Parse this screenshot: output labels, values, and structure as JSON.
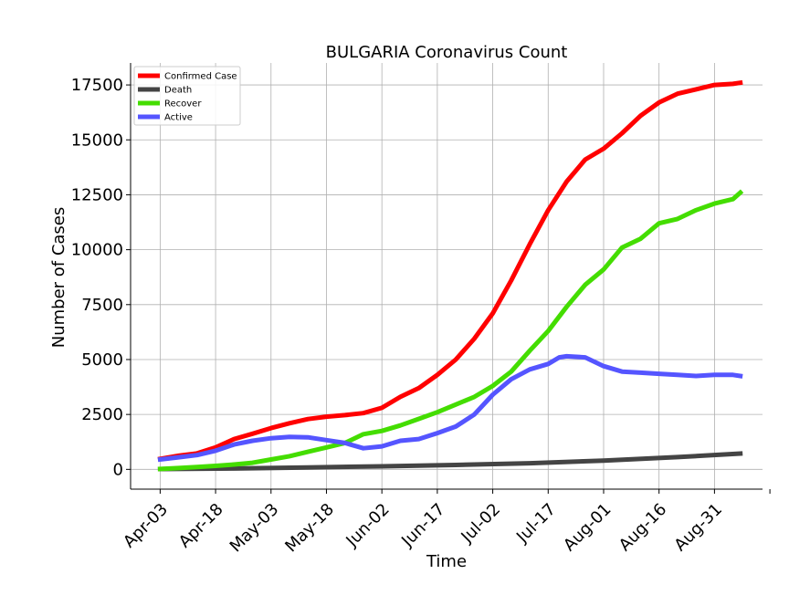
{
  "chart_data": {
    "type": "line",
    "title": "BULGARIA Coronavirus Count",
    "xlabel": "Time",
    "ylabel": "Number of Cases",
    "x_tick_labels": [
      "Apr-03",
      "Apr-18",
      "May-03",
      "May-18",
      "Jun-02",
      "Jun-17",
      "Jul-02",
      "Jul-17",
      "Aug-01",
      "Aug-16",
      "Aug-31"
    ],
    "x_range_days": [
      -8,
      163
    ],
    "ylim": [
      -900,
      18500
    ],
    "y_ticks": [
      0,
      2500,
      5000,
      7500,
      10000,
      12500,
      15000,
      17500
    ],
    "y_tick_labels": [
      "0",
      "2500",
      "5000",
      "7500",
      "10000",
      "12500",
      "15000",
      "17500"
    ],
    "grid": true,
    "legend_position": "top-left",
    "series": [
      {
        "name": "Confirmed Case",
        "color": "#ff0000",
        "x": [
          0,
          5,
          10,
          15,
          20,
          25,
          30,
          35,
          40,
          45,
          50,
          55,
          60,
          65,
          70,
          75,
          80,
          85,
          90,
          95,
          100,
          105,
          110,
          115,
          120,
          125,
          130,
          135,
          140,
          145,
          150,
          155,
          157
        ],
        "values": [
          480,
          620,
          730,
          1000,
          1380,
          1620,
          1880,
          2100,
          2290,
          2400,
          2470,
          2560,
          2800,
          3300,
          3700,
          4300,
          5000,
          5950,
          7100,
          8600,
          10250,
          11800,
          13100,
          14100,
          14600,
          15300,
          16100,
          16700,
          17100,
          17300,
          17500,
          17550,
          17600
        ]
      },
      {
        "name": "Death",
        "color": "#444444",
        "x": [
          0,
          20,
          40,
          60,
          80,
          100,
          120,
          140,
          157
        ],
        "values": [
          15,
          40,
          90,
          140,
          200,
          280,
          400,
          560,
          720
        ]
      },
      {
        "name": "Recover",
        "color": "#44dd00",
        "x": [
          0,
          5,
          10,
          15,
          20,
          25,
          30,
          35,
          40,
          45,
          50,
          55,
          60,
          65,
          70,
          75,
          80,
          85,
          90,
          95,
          100,
          105,
          110,
          115,
          120,
          125,
          130,
          135,
          140,
          145,
          150,
          155,
          157
        ],
        "values": [
          20,
          60,
          110,
          160,
          220,
          300,
          450,
          600,
          800,
          1000,
          1200,
          1600,
          1750,
          2000,
          2300,
          2600,
          2950,
          3300,
          3800,
          4450,
          5400,
          6300,
          7400,
          8400,
          9100,
          10100,
          10500,
          11200,
          11400,
          11800,
          12100,
          12300,
          12600
        ]
      },
      {
        "name": "Active",
        "color": "#5555ff",
        "x": [
          0,
          5,
          10,
          15,
          20,
          25,
          30,
          35,
          40,
          45,
          50,
          55,
          60,
          65,
          70,
          75,
          80,
          85,
          90,
          95,
          100,
          105,
          108,
          110,
          115,
          120,
          125,
          130,
          135,
          140,
          145,
          150,
          155,
          157
        ],
        "values": [
          450,
          550,
          650,
          850,
          1130,
          1300,
          1420,
          1480,
          1460,
          1330,
          1200,
          960,
          1050,
          1300,
          1380,
          1650,
          1950,
          2500,
          3400,
          4100,
          4550,
          4800,
          5100,
          5150,
          5100,
          4700,
          4450,
          4400,
          4350,
          4300,
          4250,
          4300,
          4300,
          4250
        ]
      }
    ]
  }
}
